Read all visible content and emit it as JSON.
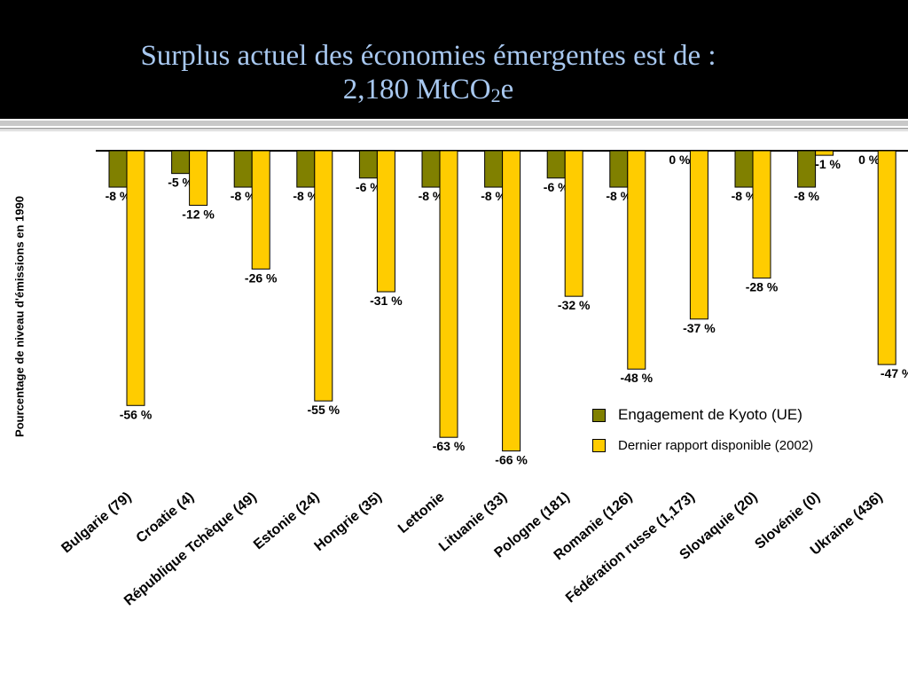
{
  "slide": {
    "title_main": "Surplus actuel des économies émergentes est de :",
    "title_line2_pre": "2,180 MtCO",
    "title_line2_sub": "2",
    "title_line2_post": "e"
  },
  "colors": {
    "header_bg": "#000000",
    "title": "#a8c8f0",
    "kyoto_bar": "#808000",
    "report_bar": "#ffcc00",
    "bar_outline": "#000000",
    "rule": "#c0c0c0"
  },
  "chart_data": {
    "type": "bar",
    "categories": [
      "Bulgarie  (79)",
      "Croatie (4)",
      "République  Tchèque (49)",
      "Estonie (24)",
      "Hongrie (35)",
      "Lettonie",
      "Lituanie (33)",
      "Pologne (181)",
      "Romanie (126)",
      "Fédération russe (1,173)",
      "Slovaquie (20)",
      "Slovénie (0)",
      "Ukraine (436)"
    ],
    "series": [
      {
        "name": "Engagement de Kyoto (UE)",
        "values": [
          -8,
          -5,
          -8,
          -8,
          -6,
          -8,
          -8,
          -6,
          -8,
          0,
          -8,
          -8,
          0
        ],
        "labels": [
          "-8 %",
          "-5 %",
          "-8 %",
          "-8 %",
          "-6 %",
          "-8 %",
          "-8 %",
          "-6 %",
          "-8 %",
          "0 %",
          "-8 %",
          "-8 %",
          "0 %"
        ]
      },
      {
        "name": "Dernier rapport disponible (2002)",
        "values": [
          -56,
          -12,
          -26,
          -55,
          -31,
          -63,
          -66,
          -32,
          -48,
          -37,
          -28,
          -1,
          -47
        ],
        "labels": [
          "-56 %",
          "-12 %",
          "-26 %",
          "-55 %",
          "-31 %",
          "-63 %",
          "-66 %",
          "-32 %",
          "-48 %",
          "-37 %",
          "-28 %",
          "-1 %",
          "-47 %"
        ]
      }
    ],
    "ylabel": "Pourcentage de niveau d'émissions en 1990",
    "ylim": [
      -70,
      0
    ],
    "grid": false,
    "legend_position": "bottom-right"
  },
  "legend": {
    "kyoto_label": "Engagement de Kyoto (UE)",
    "report_label": "Dernier rapport disponible (2002)"
  }
}
